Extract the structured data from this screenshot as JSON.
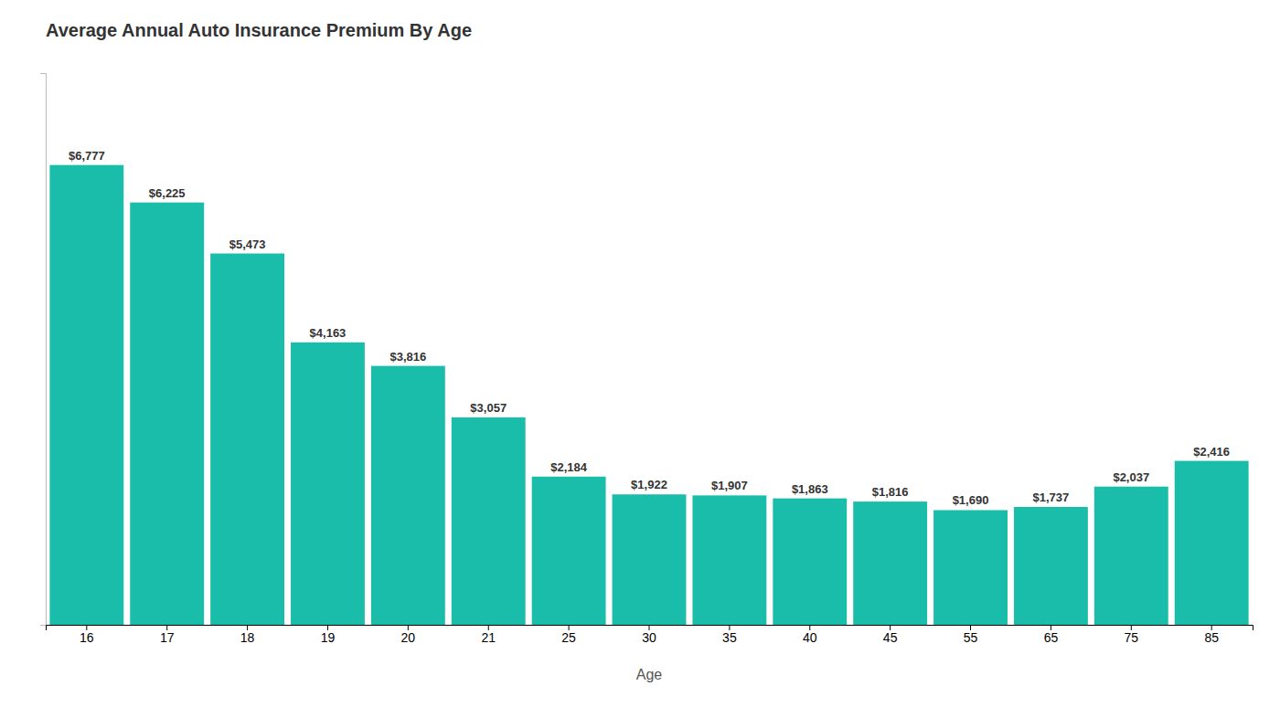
{
  "chart_data": {
    "type": "bar",
    "title": "Average Annual Auto Insurance Premium By Age",
    "xlabel": "Age",
    "categories": [
      "16",
      "17",
      "18",
      "19",
      "20",
      "21",
      "25",
      "30",
      "35",
      "40",
      "45",
      "55",
      "65",
      "75",
      "85"
    ],
    "values": [
      6777,
      6225,
      5473,
      4163,
      3816,
      3057,
      2184,
      1922,
      1907,
      1863,
      1816,
      1690,
      1737,
      2037,
      2416
    ],
    "value_labels": [
      "$6,777",
      "$6,225",
      "$5,473",
      "$4,163",
      "$3,816",
      "$3,057",
      "$2,184",
      "$1,922",
      "$1,907",
      "$1,863",
      "$1,816",
      "$1,690",
      "$1,737",
      "$2,037",
      "$2,416"
    ],
    "data_labels": true,
    "color": "#1ABCAA",
    "ylim": [
      0,
      8132.4
    ],
    "grid": false,
    "tick_labels": "x"
  }
}
